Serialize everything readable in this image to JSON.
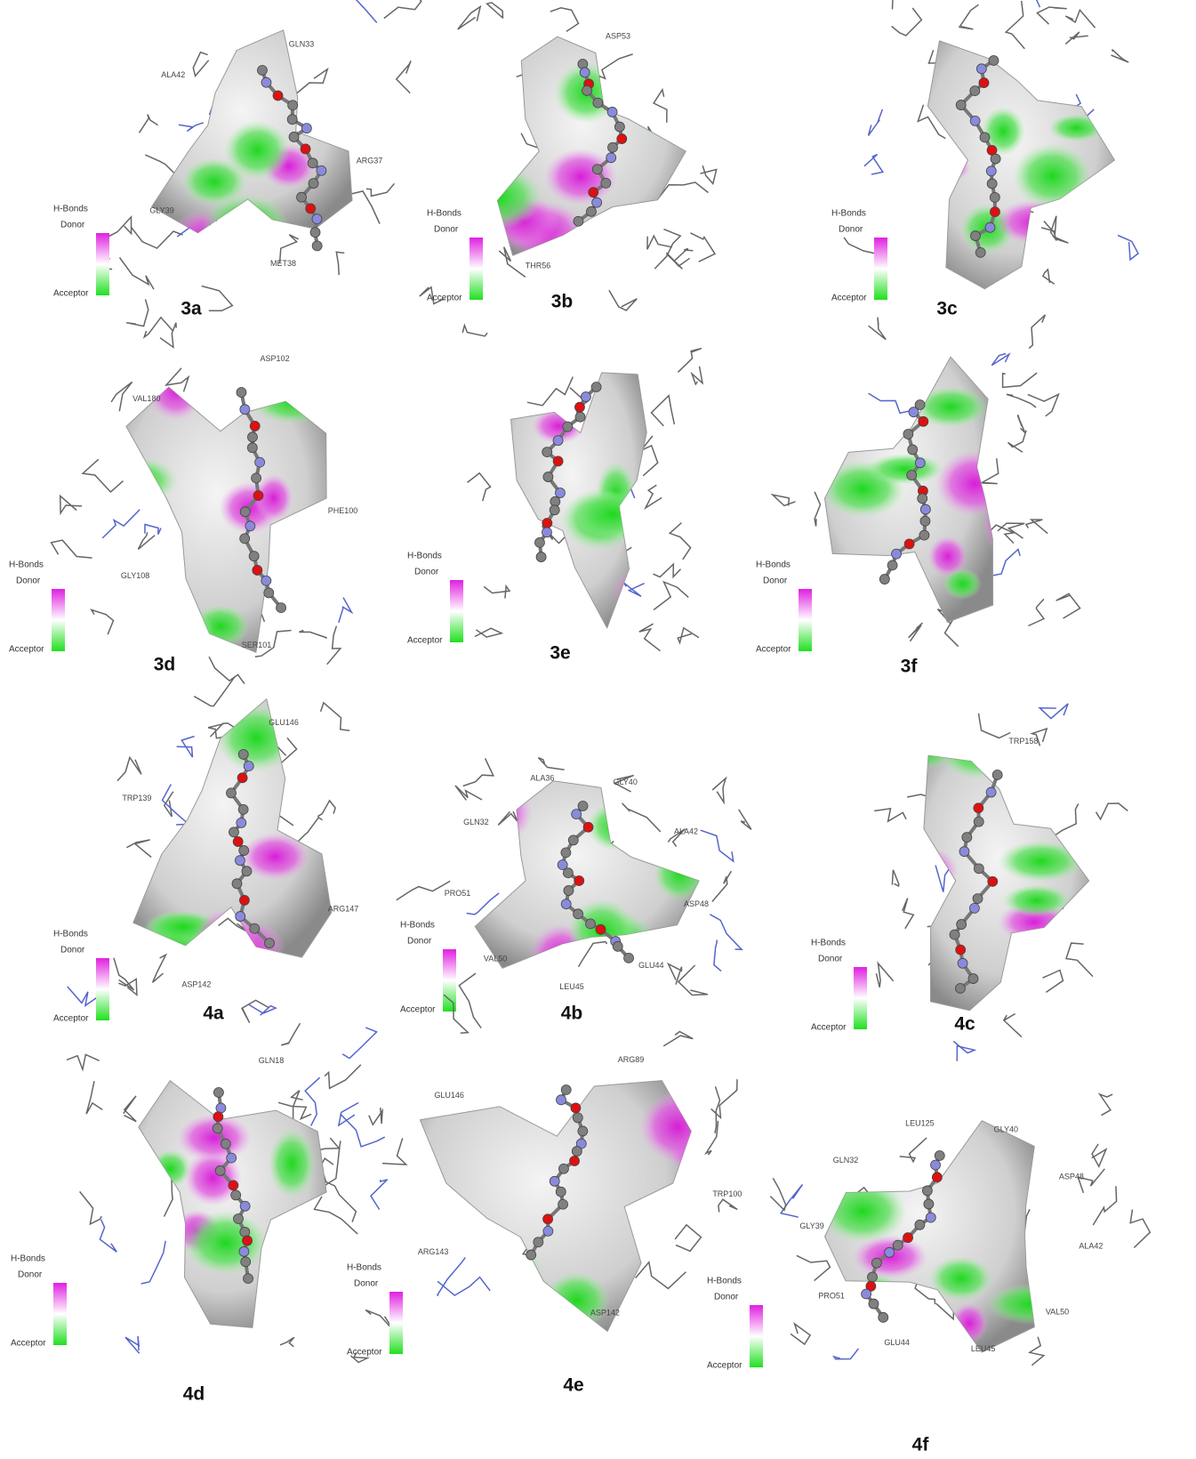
{
  "legend": {
    "title": "H-Bonds",
    "donor": "Donor",
    "acceptor": "Acceptor"
  },
  "panels": [
    {
      "label": "3a",
      "residues": [
        "GLN33",
        "ARG37",
        "MET38",
        "GLY39",
        "ALA42"
      ]
    },
    {
      "label": "3b",
      "residues": [
        "ASP53",
        "THR56"
      ]
    },
    {
      "label": "3c",
      "residues": []
    },
    {
      "label": "3d",
      "residues": [
        "ASP102",
        "PHE100",
        "SER101",
        "GLY108",
        "VAL180"
      ]
    },
    {
      "label": "3e",
      "residues": []
    },
    {
      "label": "3f",
      "residues": []
    },
    {
      "label": "4a",
      "residues": [
        "GLU146",
        "ARG147",
        "ASP142",
        "TRP139"
      ]
    },
    {
      "label": "4b",
      "residues": [
        "GLY40",
        "ALA42",
        "ASP48",
        "GLU44",
        "LEU45",
        "VAL50",
        "PRO51",
        "GLN32",
        "ALA36"
      ]
    },
    {
      "label": "4c",
      "residues": [
        "TRP158"
      ]
    },
    {
      "label": "4d",
      "residues": [
        "GLN18"
      ]
    },
    {
      "label": "4e",
      "residues": [
        "ARG89",
        "TRP100",
        "ASP142",
        "ARG143",
        "GLU146"
      ]
    },
    {
      "label": "4f",
      "residues": [
        "GLY40",
        "ASP48",
        "ALA42",
        "VAL50",
        "LEU45",
        "GLU44",
        "PRO51",
        "GLY39",
        "GLN32",
        "LEU125"
      ]
    }
  ]
}
